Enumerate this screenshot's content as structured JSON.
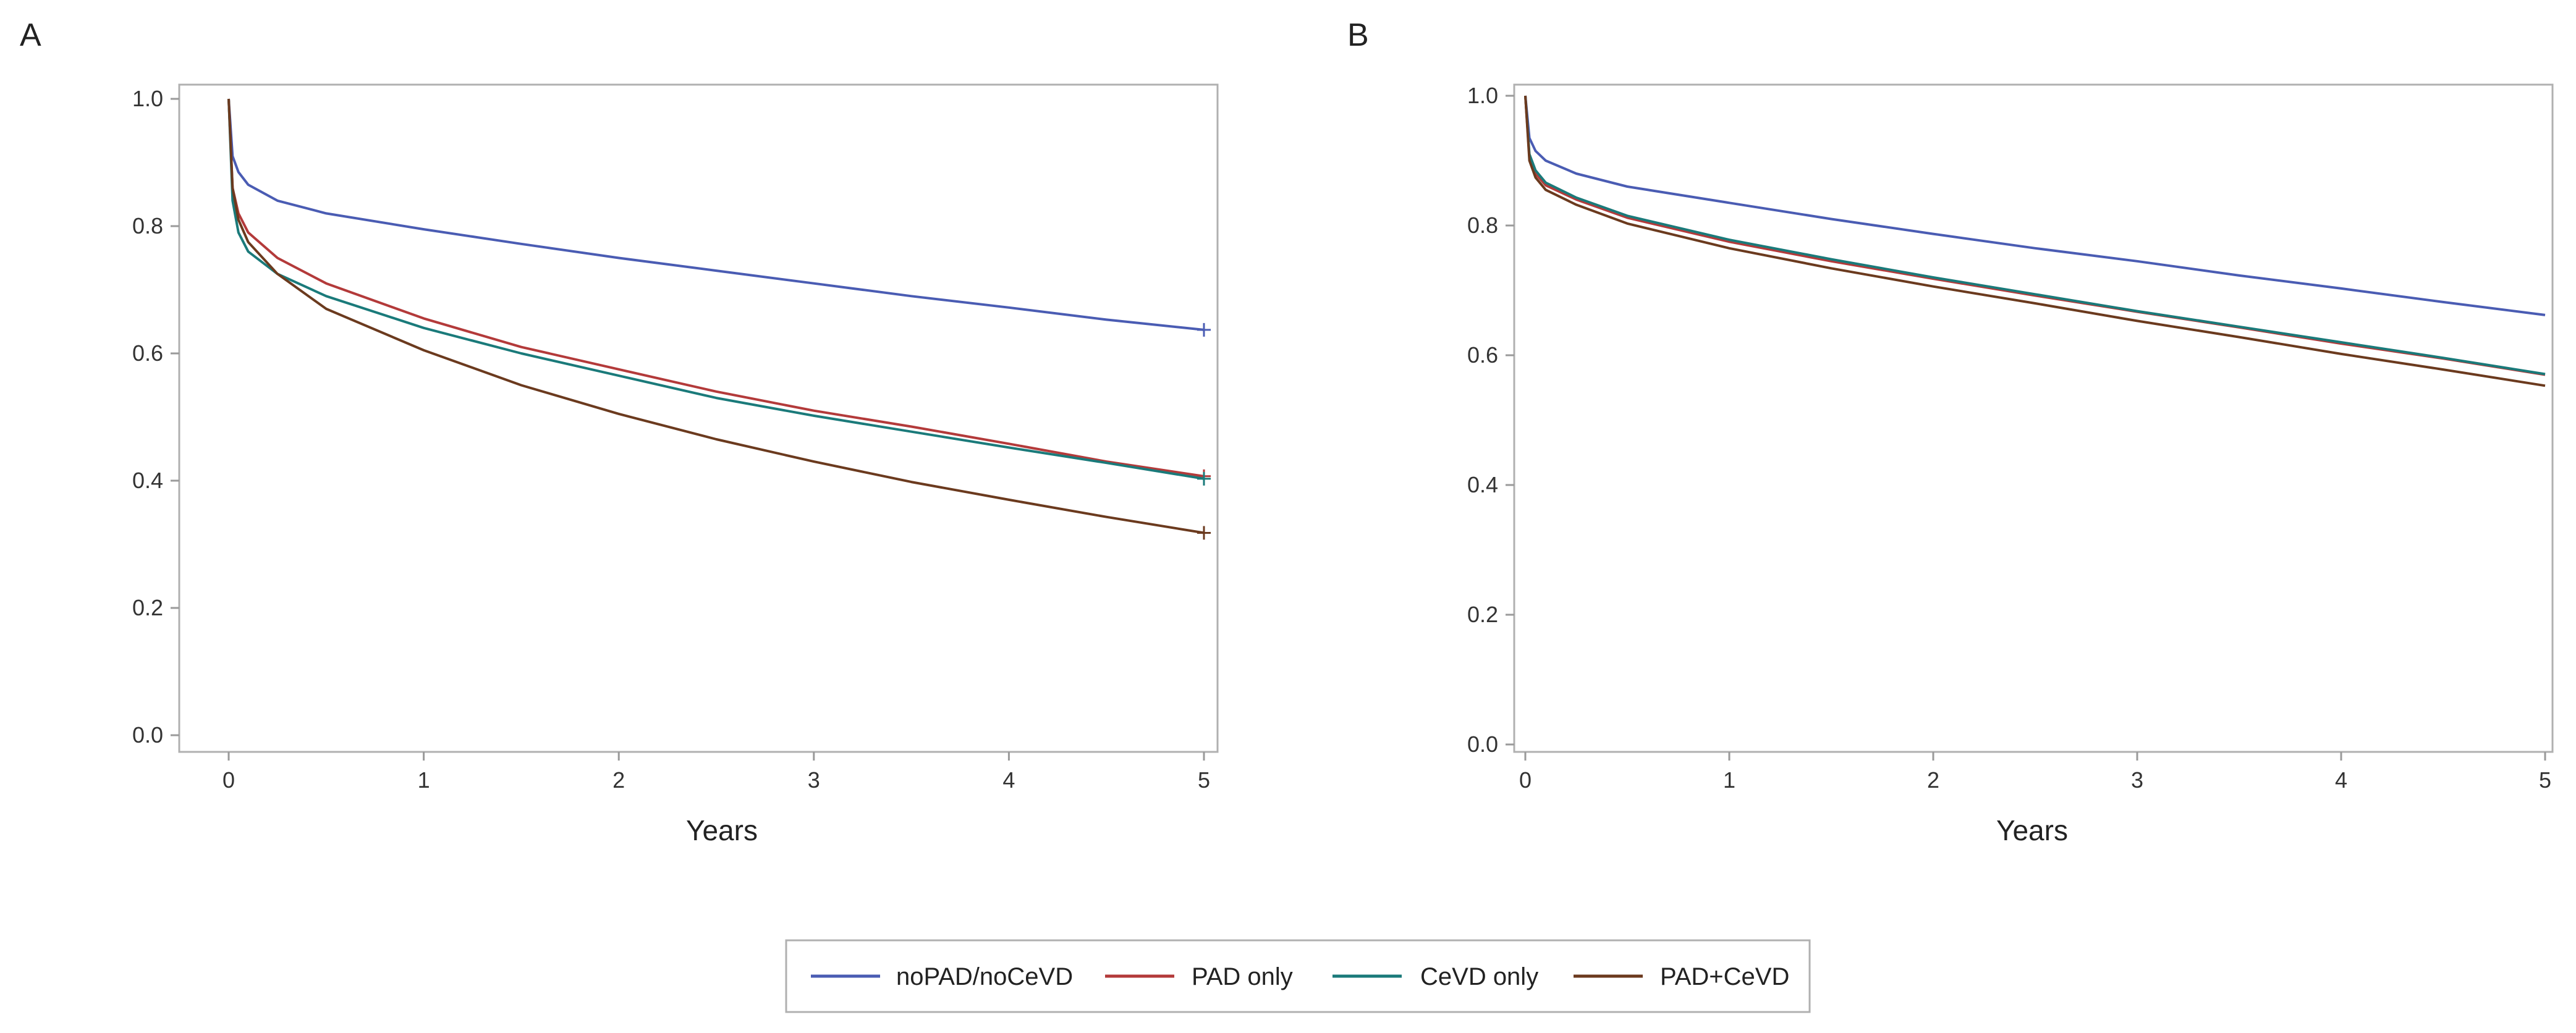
{
  "chart_data": [
    {
      "type": "line",
      "panel_label": "A",
      "title": "",
      "xlabel": "Years",
      "ylabel": "",
      "xlim": [
        0,
        5
      ],
      "ylim": [
        0,
        1
      ],
      "x_ticks": [
        "0",
        "1",
        "2",
        "3",
        "4",
        "5"
      ],
      "y_ticks": [
        "0.0",
        "0.2",
        "0.4",
        "0.6",
        "0.8",
        "1.0"
      ],
      "grid": false,
      "censor_mark_at_end": true,
      "x": [
        0,
        0.02,
        0.05,
        0.1,
        0.25,
        0.5,
        1,
        1.5,
        2,
        2.5,
        3,
        3.5,
        4,
        4.5,
        5
      ],
      "series": [
        {
          "name": "noPAD/noCeVD",
          "color": "#4a5cb3",
          "values": [
            1.0,
            0.91,
            0.885,
            0.865,
            0.84,
            0.82,
            0.795,
            0.772,
            0.75,
            0.73,
            0.71,
            0.69,
            0.672,
            0.653,
            0.637
          ]
        },
        {
          "name": "PAD only",
          "color": "#b33a3a",
          "values": [
            1.0,
            0.86,
            0.82,
            0.79,
            0.75,
            0.71,
            0.655,
            0.61,
            0.575,
            0.54,
            0.51,
            0.485,
            0.458,
            0.43,
            0.407
          ]
        },
        {
          "name": "CeVD only",
          "color": "#1a7a7a",
          "values": [
            1.0,
            0.84,
            0.79,
            0.76,
            0.725,
            0.69,
            0.64,
            0.6,
            0.565,
            0.53,
            0.502,
            0.477,
            0.452,
            0.428,
            0.403
          ]
        },
        {
          "name": "PAD+CeVD",
          "color": "#6b3a1e",
          "values": [
            1.0,
            0.86,
            0.81,
            0.775,
            0.725,
            0.67,
            0.605,
            0.55,
            0.505,
            0.465,
            0.43,
            0.398,
            0.37,
            0.343,
            0.318
          ]
        }
      ]
    },
    {
      "type": "line",
      "panel_label": "B",
      "title": "",
      "xlabel": "Years",
      "ylabel": "",
      "xlim": [
        0,
        5
      ],
      "ylim": [
        0,
        1
      ],
      "x_ticks": [
        "0",
        "1",
        "2",
        "3",
        "4",
        "5"
      ],
      "y_ticks": [
        "0.0",
        "0.2",
        "0.4",
        "0.6",
        "0.8",
        "1.0"
      ],
      "grid": false,
      "censor_mark_at_end": false,
      "x": [
        0,
        0.02,
        0.05,
        0.1,
        0.25,
        0.5,
        1,
        1.5,
        2,
        2.5,
        3,
        3.5,
        4,
        4.5,
        5
      ],
      "series": [
        {
          "name": "noPAD/noCeVD",
          "color": "#4a5cb3",
          "values": [
            1.0,
            0.935,
            0.915,
            0.9,
            0.88,
            0.86,
            0.835,
            0.81,
            0.787,
            0.765,
            0.745,
            0.723,
            0.703,
            0.682,
            0.662
          ]
        },
        {
          "name": "PAD only",
          "color": "#b33a3a",
          "values": [
            1.0,
            0.905,
            0.88,
            0.862,
            0.84,
            0.812,
            0.775,
            0.745,
            0.718,
            0.692,
            0.667,
            0.643,
            0.618,
            0.595,
            0.57
          ]
        },
        {
          "name": "CeVD only",
          "color": "#1a7a7a",
          "values": [
            1.0,
            0.91,
            0.885,
            0.866,
            0.843,
            0.815,
            0.778,
            0.748,
            0.72,
            0.694,
            0.668,
            0.644,
            0.62,
            0.596,
            0.571
          ]
        },
        {
          "name": "PAD+CeVD",
          "color": "#6b3a1e",
          "values": [
            1.0,
            0.9,
            0.874,
            0.855,
            0.832,
            0.803,
            0.765,
            0.734,
            0.706,
            0.68,
            0.653,
            0.628,
            0.602,
            0.578,
            0.553
          ]
        }
      ]
    }
  ],
  "legend": {
    "placement": "bottom-center",
    "items": [
      {
        "label": "noPAD/noCeVD",
        "color": "#4a5cb3"
      },
      {
        "label": "PAD only",
        "color": "#b33a3a"
      },
      {
        "label": "CeVD only",
        "color": "#1a7a7a"
      },
      {
        "label": "PAD+CeVD",
        "color": "#6b3a1e"
      }
    ]
  }
}
